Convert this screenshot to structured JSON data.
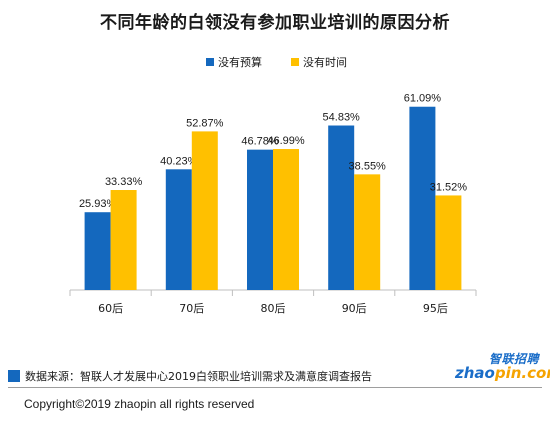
{
  "chart_data": {
    "type": "bar",
    "title": "不同年龄的白领没有参加职业培训的原因分析",
    "categories": [
      "60后",
      "70后",
      "80后",
      "90后",
      "95后"
    ],
    "series": [
      {
        "name": "没有预算",
        "color": "#1468be",
        "values": [
          25.93,
          40.23,
          46.78,
          54.83,
          61.09
        ],
        "labels": [
          "25.93%",
          "40.23%",
          "46.78%",
          "54.83%",
          "61.09%"
        ]
      },
      {
        "name": "没有时间",
        "color": "#ffc000",
        "values": [
          33.33,
          52.87,
          46.99,
          38.55,
          31.52
        ],
        "labels": [
          "33.33%",
          "52.87%",
          "46.99%",
          "38.55%",
          "31.52%"
        ]
      }
    ],
    "ylim": [
      0,
      70
    ],
    "legend_position": "top-center",
    "grid": false
  },
  "footer": {
    "source": "数据来源：智联人才发展中心2019白领职业培训需求及满意度调查报告",
    "copyright": "Copyright©2019 zhaopin all rights reserved"
  },
  "logo": {
    "top_text": "智联招聘",
    "bottom_text_a": "zhao",
    "bottom_text_b": "pin.com"
  }
}
